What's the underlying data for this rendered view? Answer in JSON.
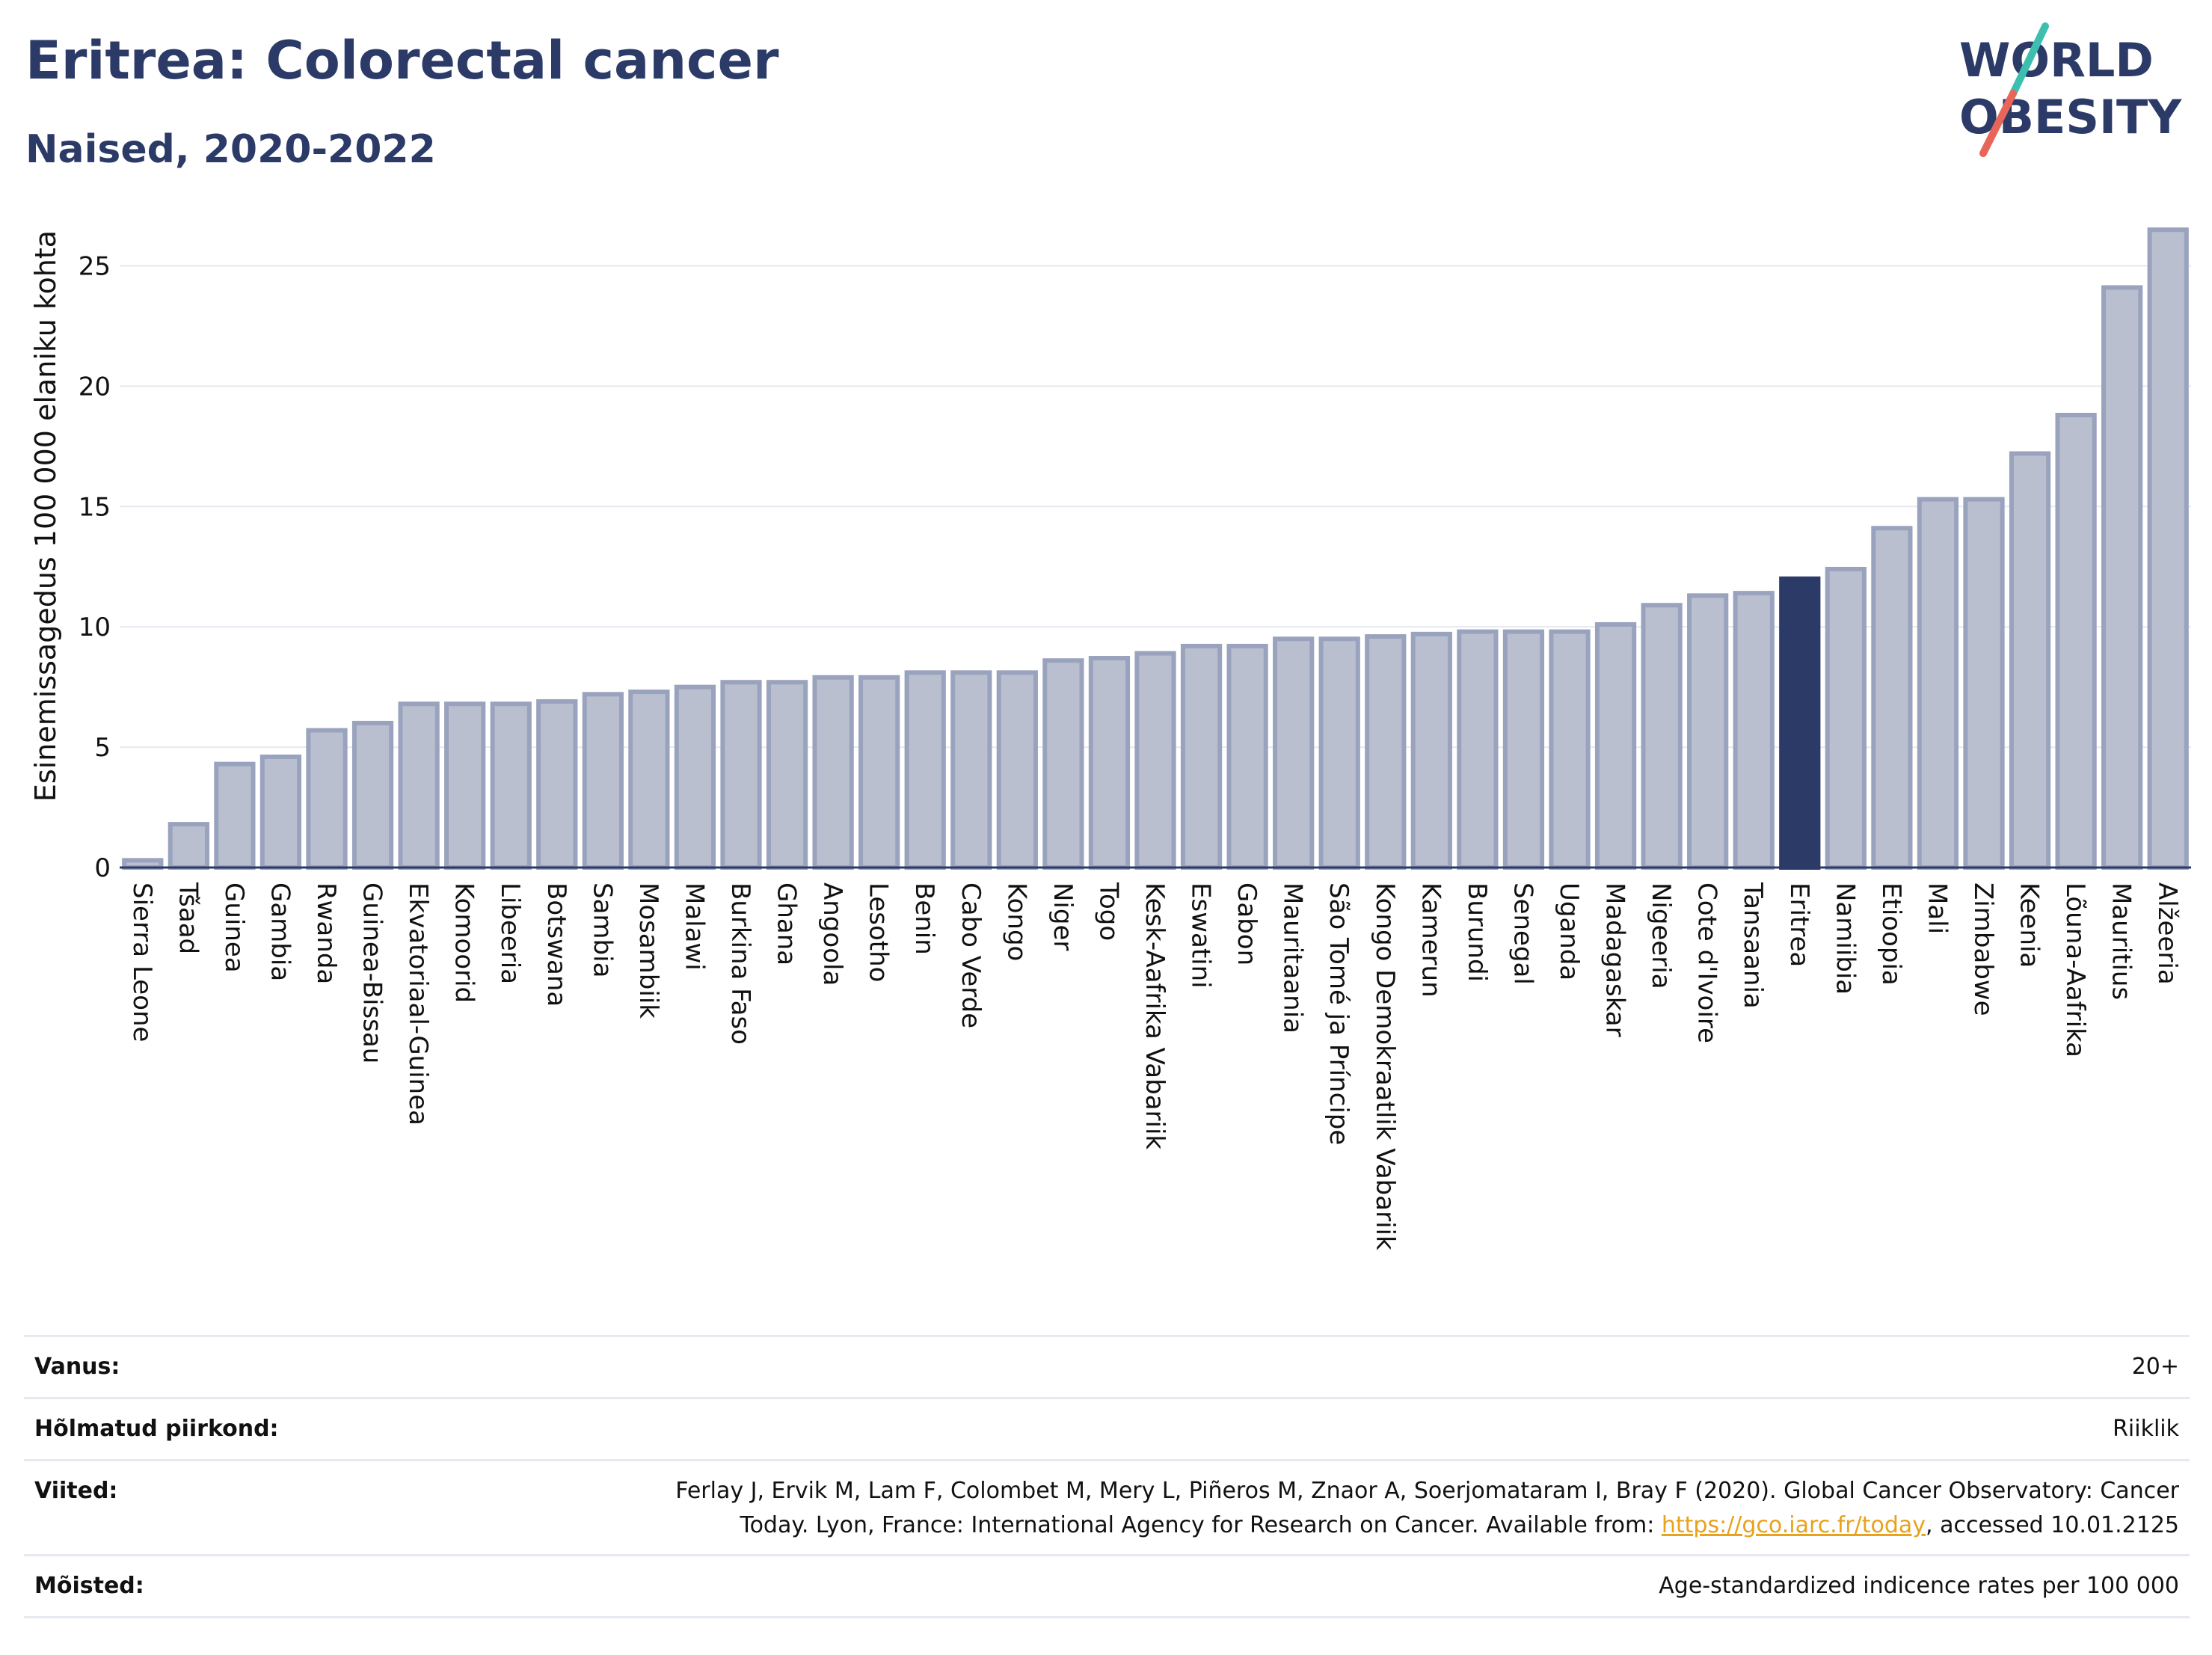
{
  "header": {
    "title": "Eritrea: Colorectal cancer",
    "subtitle": "Naised, 2020-2022"
  },
  "logo": {
    "line1": "WORLD",
    "line2": "OBESITY",
    "accent_teal": "#3dbfb0",
    "accent_red": "#e8655a",
    "text_color": "#2b3a67"
  },
  "chart_data": {
    "type": "bar",
    "ylabel": "Esinemissagedus 100 000 elaniku kohta",
    "ylim": [
      0,
      27.5
    ],
    "yticks": [
      0,
      5,
      10,
      15,
      20,
      25
    ],
    "grid": true,
    "highlight": "Eritrea",
    "bar_color": "#b9bfcf",
    "bar_edge_color": "#9aa3bd",
    "highlight_color": "#2b3a67",
    "categories": [
      "Sierra Leone",
      "Tšaad",
      "Guinea",
      "Gambia",
      "Rwanda",
      "Guinea-Bissau",
      "Ekvatoriaal-Guinea",
      "Komoorid",
      "Libeeria",
      "Botswana",
      "Sambia",
      "Mosambiik",
      "Malawi",
      "Burkina Faso",
      "Ghana",
      "Angoola",
      "Lesotho",
      "Benin",
      "Cabo Verde",
      "Kongo",
      "Niger",
      "Togo",
      "Kesk-Aafrika Vabariik",
      "Eswatini",
      "Gabon",
      "Mauritaania",
      "São Tomé ja Príncipe",
      "Kongo Demokraatlik Vabariik",
      "Kamerun",
      "Burundi",
      "Senegal",
      "Uganda",
      "Madagaskar",
      "Nigeeria",
      "Cote d'Ivoire",
      "Tansaania",
      "Eritrea",
      "Namiibia",
      "Etioopia",
      "Mali",
      "Zimbabwe",
      "Keenia",
      "Lõuna-Aafrika",
      "Mauritius",
      "Alžeeria"
    ],
    "values": [
      0.3,
      1.8,
      4.3,
      4.6,
      5.7,
      6.0,
      6.8,
      6.8,
      6.8,
      6.9,
      7.2,
      7.3,
      7.5,
      7.7,
      7.7,
      7.9,
      7.9,
      8.1,
      8.1,
      8.1,
      8.6,
      8.7,
      8.9,
      9.2,
      9.2,
      9.5,
      9.5,
      9.6,
      9.7,
      9.8,
      9.8,
      9.8,
      10.1,
      10.9,
      11.3,
      11.4,
      12.0,
      12.4,
      14.1,
      15.3,
      15.3,
      17.2,
      18.8,
      24.1,
      26.5
    ]
  },
  "footer": {
    "rows": [
      {
        "label": "Vanus:",
        "value": "20+"
      },
      {
        "label": "Hõlmatud piirkond:",
        "value": "Riiklik"
      },
      {
        "label": "Viited:",
        "value_pre": "Ferlay J, Ervik M, Lam F, Colombet M, Mery L, Piñeros M, Znaor A, Soerjomataram I, Bray F (2020). Global Cancer Observatory: Cancer Today. Lyon, France: International Agency for Research on Cancer. Available from: ",
        "link": "https://gco.iarc.fr/today",
        "value_post": ", accessed 10.01.2125"
      },
      {
        "label": "Mõisted:",
        "value": "Age-standardized indicence rates per 100 000"
      }
    ]
  }
}
